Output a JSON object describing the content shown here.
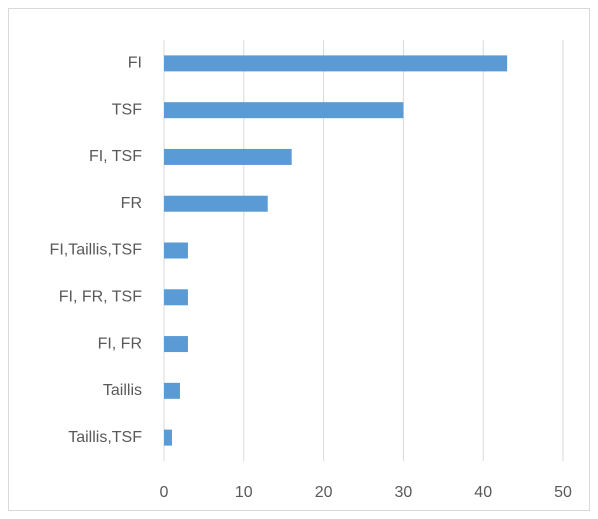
{
  "chart_data": {
    "type": "barh",
    "categories": [
      "FI",
      "TSF",
      "FI, TSF",
      "FR",
      "FI,Taillis,TSF",
      "FI, FR, TSF",
      "FI, FR",
      "Taillis",
      "Taillis,TSF"
    ],
    "values": [
      43,
      30,
      16,
      13,
      3,
      3,
      3,
      2,
      1
    ],
    "color": "#5b9bd5",
    "xlim": [
      0,
      50
    ],
    "xticks": [
      0,
      10,
      20,
      30,
      40,
      50
    ],
    "grid": true
  }
}
